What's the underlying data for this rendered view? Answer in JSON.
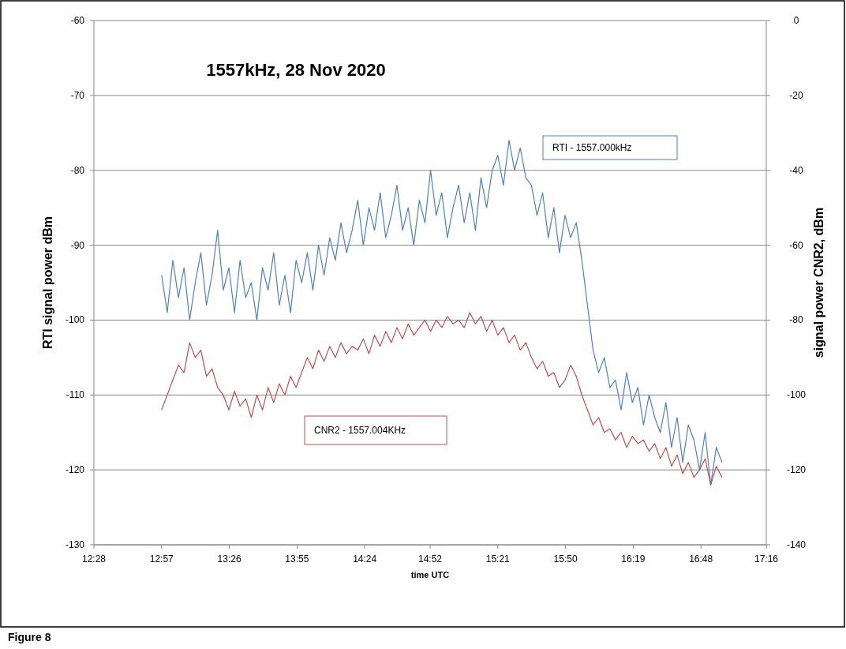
{
  "chart_data": {
    "type": "line",
    "title": "1557kHz, 28 Nov 2020",
    "xlabel": "time UTC",
    "ylabel": "RTI signal power dBm",
    "y2label": "signal power CNR2, dBm",
    "annotations": [
      "Figure 8"
    ],
    "x": [
      12.95,
      12.99,
      13.03,
      13.07,
      13.11,
      13.15,
      13.19,
      13.23,
      13.27,
      13.31,
      13.35,
      13.39,
      13.43,
      13.47,
      13.51,
      13.55,
      13.59,
      13.63,
      13.67,
      13.71,
      13.75,
      13.79,
      13.83,
      13.87,
      13.91,
      13.95,
      13.99,
      14.03,
      14.07,
      14.11,
      14.15,
      14.19,
      14.23,
      14.27,
      14.31,
      14.35,
      14.39,
      14.43,
      14.47,
      14.51,
      14.55,
      14.59,
      14.63,
      14.67,
      14.71,
      14.75,
      14.79,
      14.83,
      14.87,
      14.91,
      14.95,
      14.99,
      15.03,
      15.07,
      15.11,
      15.15,
      15.19,
      15.23,
      15.27,
      15.31,
      15.35,
      15.39,
      15.43,
      15.47,
      15.51,
      15.55,
      15.59,
      15.63,
      15.67,
      15.71,
      15.75,
      15.79,
      15.83,
      15.87,
      15.91,
      15.95,
      15.99,
      16.03,
      16.07,
      16.11,
      16.15,
      16.19,
      16.23,
      16.27,
      16.31,
      16.35,
      16.39,
      16.43,
      16.47,
      16.51,
      16.55,
      16.59,
      16.63,
      16.67,
      16.71,
      16.75,
      16.79,
      16.83,
      16.87,
      16.91,
      16.95
    ],
    "series": [
      {
        "name": "RTI - 1557.000kHz",
        "color": "#4f81bd",
        "values": [
          -94,
          -99,
          -92,
          -97,
          -93,
          -100,
          -95,
          -91,
          -98,
          -94,
          -88,
          -96,
          -93,
          -99,
          -92,
          -97,
          -95,
          -100,
          -93,
          -96,
          -91,
          -98,
          -94,
          -99,
          -92,
          -95,
          -91,
          -96,
          -90,
          -94,
          -89,
          -92,
          -87,
          -91,
          -88,
          -84,
          -90,
          -85,
          -88,
          -83,
          -89,
          -86,
          -82,
          -88,
          -85,
          -90,
          -84,
          -87,
          -80,
          -86,
          -83,
          -89,
          -85,
          -82,
          -87,
          -83,
          -88,
          -81,
          -85,
          -80,
          -78,
          -82,
          -76,
          -80,
          -77,
          -81,
          -82,
          -86,
          -83,
          -89,
          -85,
          -91,
          -86,
          -89,
          -87,
          -92,
          -98,
          -104,
          -107,
          -105,
          -109,
          -108,
          -112,
          -107,
          -111,
          -109,
          -114,
          -110,
          -113,
          -115,
          -111,
          -117,
          -113,
          -119,
          -114,
          -116,
          -120,
          -115,
          -122,
          -117,
          -119
        ]
      },
      {
        "name": "CNR2 - 1557.004KHz",
        "color": "#c0504d",
        "axis": "y2",
        "values": [
          -104,
          -100,
          -96,
          -92,
          -94,
          -86,
          -90,
          -88,
          -95,
          -93,
          -98,
          -100,
          -104,
          -99,
          -103,
          -101,
          -106,
          -100,
          -104,
          -98,
          -102,
          -97,
          -100,
          -95,
          -98,
          -94,
          -90,
          -93,
          -88,
          -91,
          -87,
          -90,
          -86,
          -89,
          -87,
          -88,
          -85,
          -89,
          -84,
          -87,
          -83,
          -86,
          -82,
          -85,
          -81,
          -84,
          -82,
          -80,
          -83,
          -80,
          -82,
          -79,
          -81,
          -80,
          -82,
          -78,
          -81,
          -79,
          -83,
          -80,
          -84,
          -82,
          -86,
          -84,
          -88,
          -86,
          -90,
          -93,
          -91,
          -95,
          -94,
          -98,
          -96,
          -92,
          -95,
          -100,
          -104,
          -108,
          -106,
          -110,
          -109,
          -112,
          -110,
          -114,
          -111,
          -113,
          -112,
          -115,
          -113,
          -117,
          -114,
          -119,
          -116,
          -121,
          -118,
          -122,
          -120,
          -117,
          -124,
          -119,
          -122
        ]
      }
    ],
    "xlim": [
      12.4667,
      17.2667
    ],
    "xticks": [
      {
        "value": 12.4667,
        "label": "12:28"
      },
      {
        "value": 12.95,
        "label": "12:57"
      },
      {
        "value": 13.4333,
        "label": "13:26"
      },
      {
        "value": 13.9167,
        "label": "13:55"
      },
      {
        "value": 14.4,
        "label": "14:24"
      },
      {
        "value": 14.8667,
        "label": "14:52"
      },
      {
        "value": 15.35,
        "label": "15:21"
      },
      {
        "value": 15.8333,
        "label": "15:50"
      },
      {
        "value": 16.3167,
        "label": "16:19"
      },
      {
        "value": 16.8,
        "label": "16:48"
      },
      {
        "value": 17.2667,
        "label": "17:16"
      }
    ],
    "ylim": [
      -130,
      -60
    ],
    "yticks": [
      -130,
      -120,
      -110,
      -100,
      -90,
      -80,
      -70,
      -60
    ],
    "y2lim": [
      -140,
      0
    ],
    "y2ticks": [
      -140,
      -120,
      -100,
      -80,
      -60,
      -40,
      -20,
      0
    ],
    "grid": "y",
    "marker": "none",
    "line_style": "solid"
  }
}
